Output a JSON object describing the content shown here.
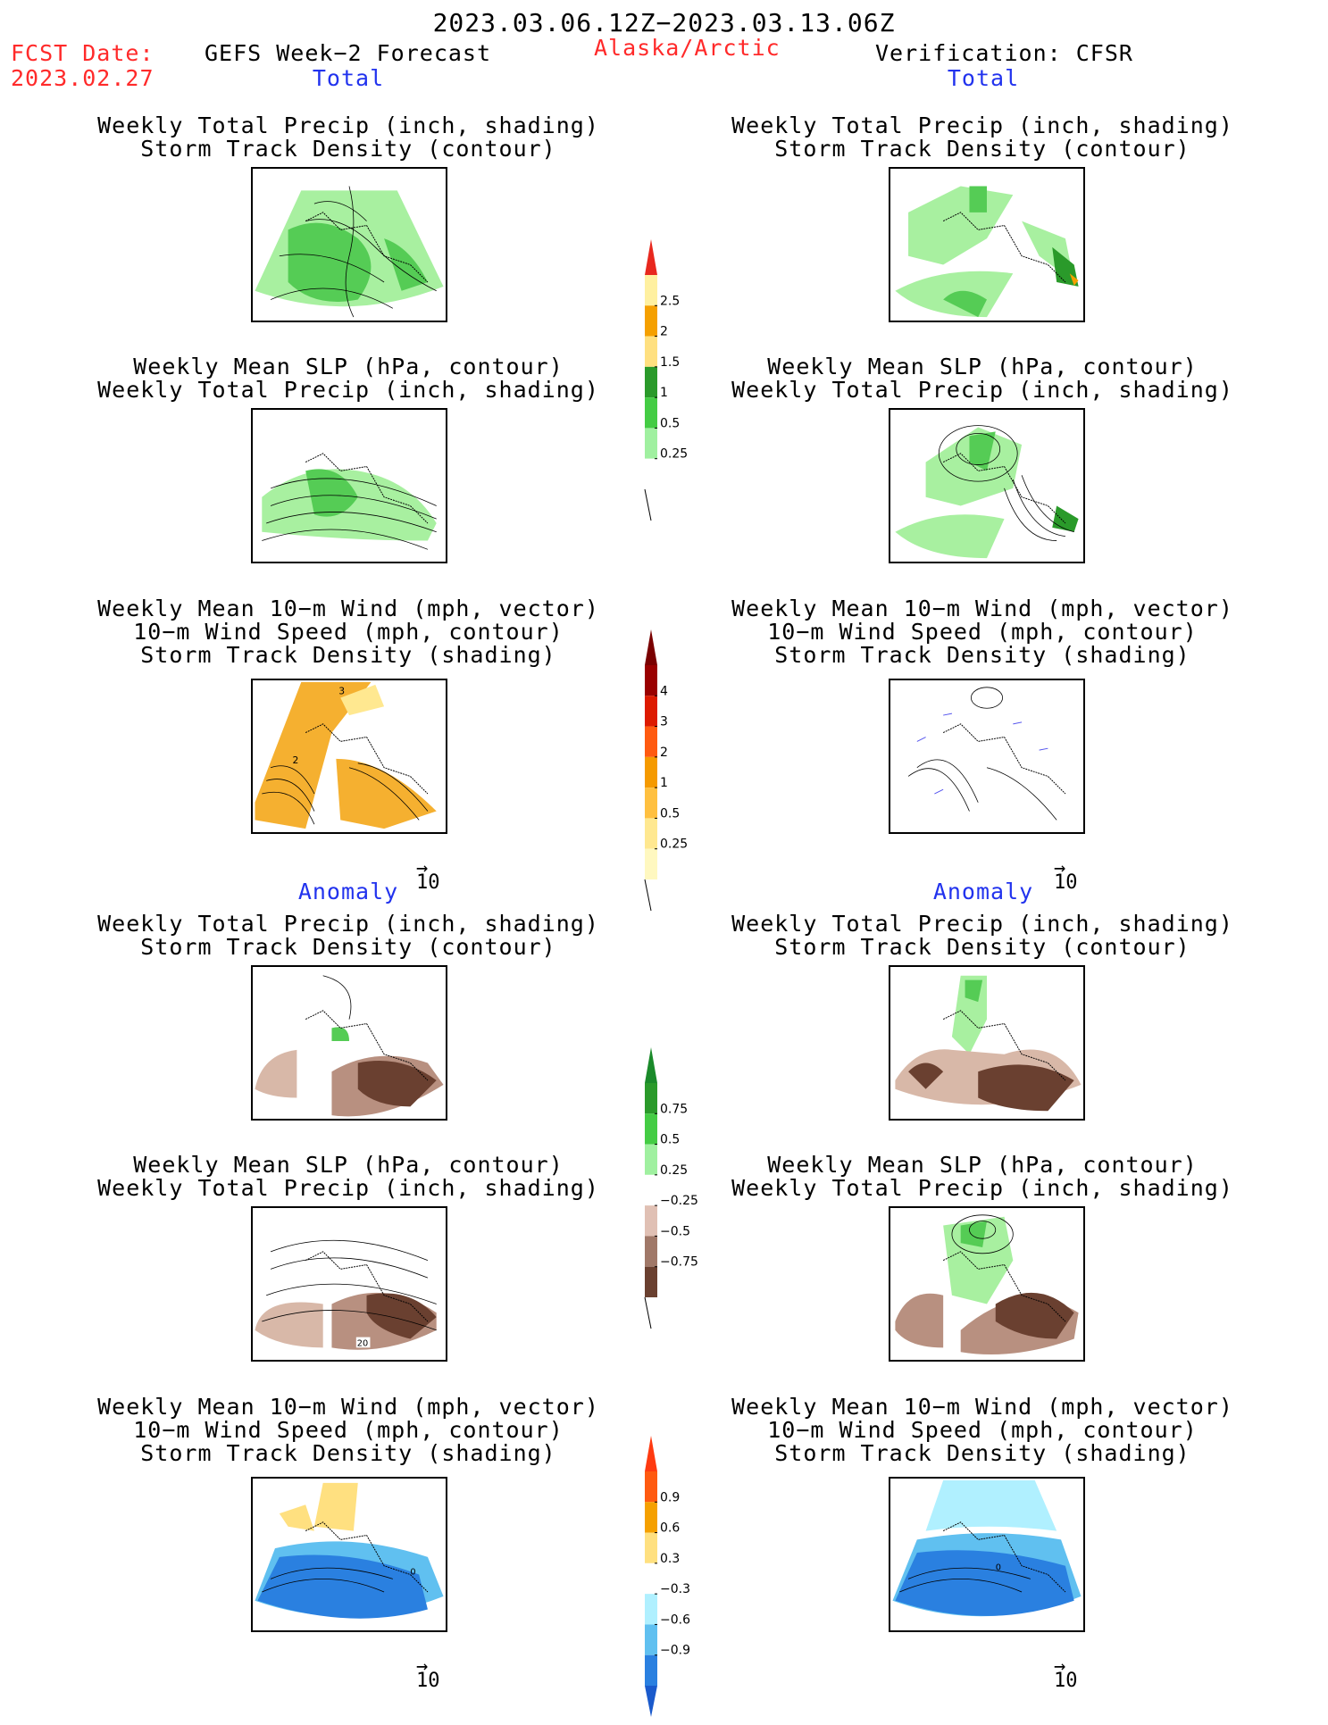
{
  "header": {
    "date_range": "2023.03.06.12Z−2023.03.13.06Z",
    "fcst_label": "FCST Date:",
    "fcst_date": "2023.02.27",
    "left_title": "GEFS Week−2 Forecast",
    "region": "Alaska/Arctic",
    "right_title": "Verification: CFSR"
  },
  "sections": {
    "total": "Total",
    "anomaly": "Anomaly"
  },
  "panel_titles": {
    "precip_storm": [
      "Weekly Total Precip (inch, shading)",
      "Storm Track Density (contour)"
    ],
    "slp_precip": [
      "Weekly Mean SLP (hPa, contour)",
      "Weekly Total Precip (inch, shading)"
    ],
    "wind": [
      "Weekly Mean 10−m Wind (mph, vector)",
      "10−m Wind Speed (mph, contour)",
      "Storm Track Density (shading)"
    ]
  },
  "vector_ref": "10",
  "map_labels": {
    "wind_total_left": [
      "3",
      "2"
    ],
    "slp_anom_left": "20",
    "wind_anom_left": "0",
    "wind_anom_right": "0"
  },
  "colorbars": {
    "precip_total": {
      "labels": [
        "2.5",
        "2",
        "1.5",
        "1",
        "0.5",
        "0.25"
      ],
      "colors": [
        "#fff0a0",
        "#f5a000",
        "#ffe080",
        "#2a9a2a",
        "#44cc44",
        "#a0f0a0",
        "#ffffff"
      ],
      "top_color": "#e8281e"
    },
    "storm_total": {
      "labels": [
        "4",
        "3",
        "2",
        "1",
        "0.5",
        "0.25"
      ],
      "colors": [
        "#9a0000",
        "#dd1a00",
        "#ff5a10",
        "#f59a00",
        "#ffc040",
        "#ffe890",
        "#fff8c0"
      ],
      "top_color": "#7a0000"
    },
    "precip_anom": {
      "labels": [
        "0.75",
        "0.5",
        "0.25",
        "−0.25",
        "−0.5",
        "−0.75"
      ],
      "colors": [
        "#2a9a2a",
        "#44cc44",
        "#a0f0a0",
        "#ffffff",
        "#e0c0b4",
        "#a07868",
        "#6a4030"
      ],
      "top_color": "#1a8a2a"
    },
    "storm_anom": {
      "labels": [
        "0.9",
        "0.6",
        "0.3",
        "−0.3",
        "−0.6",
        "−0.9"
      ],
      "colors": [
        "#ff5a10",
        "#f5a000",
        "#ffe080",
        "#ffffff",
        "#b0f0ff",
        "#60c0f0",
        "#2a80e0"
      ],
      "top_color": "#ff3a10",
      "bottom_color": "#1a5acc"
    }
  }
}
